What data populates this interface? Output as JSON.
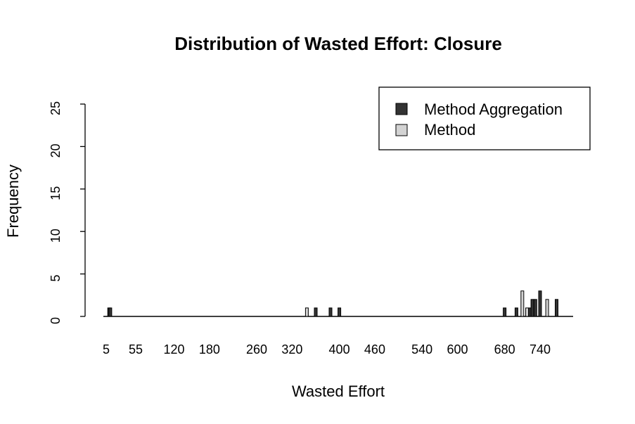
{
  "chart_data": {
    "type": "bar",
    "title": "Distribution of Wasted Effort: Closure",
    "xlabel": "Wasted Effort",
    "ylabel": "Frequency",
    "ylim": [
      0,
      25
    ],
    "yticks": [
      "0",
      "5",
      "10",
      "15",
      "20",
      "25"
    ],
    "xticks": [
      "5",
      "55",
      "120",
      "180",
      "260",
      "320",
      "400",
      "460",
      "540",
      "600",
      "680",
      "740"
    ],
    "legend_position": "top-right",
    "series": [
      {
        "name": "Method Aggregation",
        "color": "#333333"
      },
      {
        "name": "Method",
        "color": "#d3d3d3"
      }
    ],
    "bars": [
      {
        "x": 10,
        "series": 0,
        "value": 1
      },
      {
        "x": 12,
        "series": 0,
        "value": 1
      },
      {
        "x": 345,
        "series": 1,
        "value": 1
      },
      {
        "x": 360,
        "series": 0,
        "value": 1
      },
      {
        "x": 385,
        "series": 0,
        "value": 1
      },
      {
        "x": 400,
        "series": 0,
        "value": 1
      },
      {
        "x": 680,
        "series": 0,
        "value": 1
      },
      {
        "x": 700,
        "series": 0,
        "value": 1
      },
      {
        "x": 710,
        "series": 1,
        "value": 3
      },
      {
        "x": 718,
        "series": 1,
        "value": 1
      },
      {
        "x": 723,
        "series": 0,
        "value": 1
      },
      {
        "x": 727,
        "series": 0,
        "value": 2
      },
      {
        "x": 732,
        "series": 0,
        "value": 2
      },
      {
        "x": 740,
        "series": 0,
        "value": 3
      },
      {
        "x": 752,
        "series": 1,
        "value": 2
      },
      {
        "x": 768,
        "series": 0,
        "value": 2
      }
    ]
  }
}
